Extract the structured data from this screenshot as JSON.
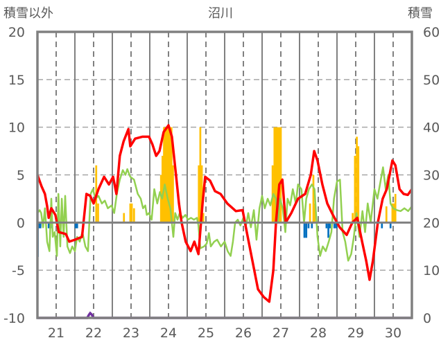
{
  "chart_data": {
    "type": "line",
    "title": "沼川",
    "ylabel_left": "積雪以外",
    "ylabel_right": "積雪",
    "xlim": [
      21,
      31
    ],
    "ylim_left": [
      -10,
      20
    ],
    "ylim_right": [
      0,
      60
    ],
    "yticks_left": [
      "20",
      "15",
      "10",
      "5",
      "0",
      "-5",
      "-10"
    ],
    "yticks_right": [
      "60",
      "50",
      "40",
      "30",
      "20",
      "10",
      "0"
    ],
    "xticks": [
      "21",
      "22",
      "23",
      "24",
      "25",
      "26",
      "27",
      "28",
      "29",
      "30"
    ],
    "grid": true,
    "colors": {
      "red": "#ff0000",
      "green": "#92d050",
      "orange": "#ffc000",
      "blue": "#0070c0",
      "purple": "#7030a0",
      "frame": "#808080",
      "text": "#595959"
    },
    "red_line": {
      "axis": "left",
      "points": [
        [
          21.0,
          5
        ],
        [
          21.11,
          3.8
        ],
        [
          21.2,
          3
        ],
        [
          21.26,
          1.7
        ],
        [
          21.3,
          0.5
        ],
        [
          21.37,
          1.5
        ],
        [
          21.48,
          0.8
        ],
        [
          21.57,
          -1
        ],
        [
          21.76,
          -1.2
        ],
        [
          21.85,
          -2
        ],
        [
          22.0,
          -1.8
        ],
        [
          22.19,
          -1.5
        ],
        [
          22.31,
          3
        ],
        [
          22.41,
          2.8
        ],
        [
          22.5,
          2
        ],
        [
          22.63,
          3.5
        ],
        [
          22.78,
          4.8
        ],
        [
          22.91,
          4
        ],
        [
          23.02,
          4.8
        ],
        [
          23.11,
          3
        ],
        [
          23.2,
          7
        ],
        [
          23.3,
          8.5
        ],
        [
          23.43,
          9.8
        ],
        [
          23.48,
          8
        ],
        [
          23.61,
          8.8
        ],
        [
          23.8,
          9
        ],
        [
          23.98,
          9
        ],
        [
          24.07,
          8.2
        ],
        [
          24.17,
          7
        ],
        [
          24.26,
          7.5
        ],
        [
          24.37,
          9.5
        ],
        [
          24.5,
          10.2
        ],
        [
          24.59,
          9
        ],
        [
          24.7,
          5
        ],
        [
          24.78,
          2
        ],
        [
          24.85,
          0
        ],
        [
          24.96,
          -2
        ],
        [
          25.09,
          -3
        ],
        [
          25.19,
          -2
        ],
        [
          25.3,
          -3.3
        ],
        [
          25.41,
          2
        ],
        [
          25.48,
          4.8
        ],
        [
          25.61,
          4.4
        ],
        [
          25.74,
          3.3
        ],
        [
          25.89,
          3
        ],
        [
          26.07,
          2
        ],
        [
          26.3,
          1.2
        ],
        [
          26.48,
          1.3
        ],
        [
          26.59,
          -1
        ],
        [
          26.74,
          -4
        ],
        [
          26.89,
          -7
        ],
        [
          27.04,
          -7.8
        ],
        [
          27.19,
          -8.3
        ],
        [
          27.3,
          -5
        ],
        [
          27.37,
          0
        ],
        [
          27.46,
          4
        ],
        [
          27.54,
          4.5
        ],
        [
          27.63,
          0
        ],
        [
          27.78,
          1
        ],
        [
          27.96,
          2.5
        ],
        [
          28.15,
          3
        ],
        [
          28.3,
          5
        ],
        [
          28.39,
          7.5
        ],
        [
          28.48,
          6.5
        ],
        [
          28.61,
          4
        ],
        [
          28.74,
          2
        ],
        [
          28.89,
          0.8
        ],
        [
          29.07,
          -0.5
        ],
        [
          29.26,
          -1.3
        ],
        [
          29.41,
          0
        ],
        [
          29.54,
          0.5
        ],
        [
          29.67,
          -2
        ],
        [
          29.78,
          -4
        ],
        [
          29.87,
          -6
        ],
        [
          29.96,
          -4
        ],
        [
          30.09,
          0
        ],
        [
          30.22,
          2.5
        ],
        [
          30.33,
          3.5
        ],
        [
          30.48,
          6.5
        ],
        [
          30.56,
          6
        ],
        [
          30.67,
          3.5
        ],
        [
          30.78,
          3
        ],
        [
          30.89,
          2.9
        ],
        [
          31.0,
          3.5
        ]
      ]
    },
    "green_line": {
      "axis": "left",
      "points": [
        [
          21.0,
          1
        ],
        [
          21.06,
          1.3
        ],
        [
          21.1,
          1
        ],
        [
          21.15,
          -0.5
        ],
        [
          21.2,
          1.5
        ],
        [
          21.26,
          -2
        ],
        [
          21.32,
          -3
        ],
        [
          21.37,
          2.5
        ],
        [
          21.41,
          -1.5
        ],
        [
          21.46,
          -1
        ],
        [
          21.52,
          -3.5
        ],
        [
          21.56,
          3
        ],
        [
          21.61,
          -2.5
        ],
        [
          21.65,
          2.5
        ],
        [
          21.7,
          -1.5
        ],
        [
          21.74,
          2.8
        ],
        [
          21.8,
          -2.5
        ],
        [
          21.87,
          -3.2
        ],
        [
          21.93,
          -2.5
        ],
        [
          22.0,
          -3
        ],
        [
          22.06,
          -1.5
        ],
        [
          22.13,
          -2
        ],
        [
          22.2,
          -1
        ],
        [
          22.28,
          -2.5
        ],
        [
          22.35,
          -3
        ],
        [
          22.42,
          3
        ],
        [
          22.48,
          3.5
        ],
        [
          22.55,
          2.5
        ],
        [
          22.63,
          2.8
        ],
        [
          22.72,
          2
        ],
        [
          22.8,
          2.3
        ],
        [
          22.88,
          1.5
        ],
        [
          22.98,
          1.8
        ],
        [
          23.05,
          1
        ],
        [
          23.12,
          3
        ],
        [
          23.2,
          4.5
        ],
        [
          23.28,
          5.5
        ],
        [
          23.35,
          5
        ],
        [
          23.4,
          5.6
        ],
        [
          23.48,
          4.8
        ],
        [
          23.58,
          4.5
        ],
        [
          23.68,
          3
        ],
        [
          23.76,
          2.5
        ],
        [
          23.82,
          1.5
        ],
        [
          23.88,
          1.8
        ],
        [
          23.92,
          0.8
        ],
        [
          23.98,
          1
        ],
        [
          24.05,
          0.3
        ],
        [
          24.12,
          3.5
        ],
        [
          24.2,
          2
        ],
        [
          24.27,
          3.2
        ],
        [
          24.33,
          2.5
        ],
        [
          24.4,
          4
        ],
        [
          24.48,
          2.5
        ],
        [
          24.55,
          1.5
        ],
        [
          24.63,
          -1.5
        ],
        [
          24.68,
          1
        ],
        [
          24.74,
          0.3
        ],
        [
          24.8,
          1
        ],
        [
          24.88,
          0.5
        ],
        [
          24.95,
          0.8
        ],
        [
          25.02,
          0.3
        ],
        [
          25.1,
          0.5
        ],
        [
          25.18,
          0.3
        ],
        [
          25.26,
          0.5
        ],
        [
          25.3,
          -0.3
        ],
        [
          25.35,
          -2.7
        ],
        [
          25.45,
          -2.5
        ],
        [
          25.52,
          -2.2
        ],
        [
          25.58,
          -1.1
        ],
        [
          25.63,
          -2.5
        ],
        [
          25.72,
          -2
        ],
        [
          25.8,
          -1.8
        ],
        [
          25.9,
          -2.5
        ],
        [
          26.0,
          -2
        ],
        [
          26.08,
          -3
        ],
        [
          26.16,
          -3.5
        ],
        [
          26.22,
          -2
        ],
        [
          26.28,
          0
        ],
        [
          26.35,
          0.3
        ],
        [
          26.42,
          -0.3
        ],
        [
          26.5,
          0.5
        ],
        [
          26.57,
          -0.3
        ],
        [
          26.63,
          1
        ],
        [
          26.7,
          -0.5
        ],
        [
          26.78,
          1.3
        ],
        [
          26.85,
          -1.8
        ],
        [
          26.93,
          1.5
        ],
        [
          27.0,
          2.8
        ],
        [
          27.07,
          1.5
        ],
        [
          27.15,
          2.5
        ],
        [
          27.22,
          1.8
        ],
        [
          27.3,
          3
        ],
        [
          27.37,
          2.5
        ],
        [
          27.42,
          0
        ],
        [
          27.48,
          2.5
        ],
        [
          27.55,
          1.5
        ],
        [
          27.62,
          -1
        ],
        [
          27.68,
          2.5
        ],
        [
          27.75,
          1.8
        ],
        [
          27.82,
          3.5
        ],
        [
          27.9,
          2
        ],
        [
          27.96,
          4
        ],
        [
          28.05,
          3.5
        ],
        [
          28.12,
          0
        ],
        [
          28.18,
          2.5
        ],
        [
          28.25,
          3.5
        ],
        [
          28.33,
          4
        ],
        [
          28.4,
          3.5
        ],
        [
          28.48,
          -1.5
        ],
        [
          28.55,
          -3.5
        ],
        [
          28.62,
          -2.5
        ],
        [
          28.7,
          -3
        ],
        [
          28.78,
          -2
        ],
        [
          28.85,
          -1
        ],
        [
          28.92,
          2.5
        ],
        [
          29.0,
          4.3
        ],
        [
          29.08,
          4.5
        ],
        [
          29.15,
          -1
        ],
        [
          29.22,
          -2
        ],
        [
          29.3,
          -4
        ],
        [
          29.38,
          -3.3
        ],
        [
          29.45,
          -1.5
        ],
        [
          29.52,
          1
        ],
        [
          29.6,
          -1.5
        ],
        [
          29.68,
          1.2
        ],
        [
          29.75,
          -1
        ],
        [
          29.82,
          2
        ],
        [
          29.9,
          0
        ],
        [
          30.0,
          3.5
        ],
        [
          30.08,
          2.5
        ],
        [
          30.17,
          4.5
        ],
        [
          30.23,
          5.8
        ],
        [
          30.3,
          3.5
        ],
        [
          30.37,
          5
        ],
        [
          30.43,
          2
        ],
        [
          30.5,
          1.5
        ],
        [
          30.6,
          1.3
        ],
        [
          30.7,
          1.2
        ],
        [
          30.8,
          1.5
        ],
        [
          30.9,
          1.2
        ],
        [
          31.0,
          1.7
        ]
      ]
    },
    "orange_bars": {
      "axis": "left",
      "points": [
        [
          21.56,
          2.8
        ],
        [
          22.57,
          6
        ],
        [
          22.62,
          2
        ],
        [
          23.31,
          1
        ],
        [
          23.48,
          2
        ],
        [
          23.52,
          2
        ],
        [
          23.58,
          1.5
        ],
        [
          24.3,
          5
        ],
        [
          24.34,
          7
        ],
        [
          24.38,
          10
        ],
        [
          24.42,
          10
        ],
        [
          24.46,
          10
        ],
        [
          24.5,
          10
        ],
        [
          24.54,
          10
        ],
        [
          24.58,
          10
        ],
        [
          24.62,
          6
        ],
        [
          25.31,
          6
        ],
        [
          25.35,
          10
        ],
        [
          25.39,
          6
        ],
        [
          25.43,
          1
        ],
        [
          27.28,
          6
        ],
        [
          27.33,
          10
        ],
        [
          27.37,
          10
        ],
        [
          27.41,
          10
        ],
        [
          27.46,
          10
        ],
        [
          27.5,
          10
        ],
        [
          28.28,
          2
        ],
        [
          28.37,
          5
        ],
        [
          28.4,
          2
        ],
        [
          29.42,
          1
        ],
        [
          29.48,
          7
        ],
        [
          29.53,
          9
        ],
        [
          29.57,
          8
        ],
        [
          30.32,
          1.7
        ],
        [
          30.48,
          2
        ],
        [
          30.52,
          2
        ],
        [
          30.56,
          3
        ]
      ]
    },
    "blue_bars": {
      "axis": "left",
      "points": [
        [
          21.01,
          -3.6
        ],
        [
          21.04,
          -0.6
        ],
        [
          21.08,
          -0.6
        ],
        [
          21.3,
          -0.6
        ],
        [
          21.35,
          -0.6
        ],
        [
          22.02,
          -0.6
        ],
        [
          22.06,
          -0.6
        ],
        [
          28.13,
          -1.6
        ],
        [
          28.18,
          -1.6
        ],
        [
          28.24,
          -0.6
        ],
        [
          28.33,
          -0.6
        ],
        [
          28.72,
          -0.6
        ],
        [
          28.77,
          -1.6
        ],
        [
          28.81,
          -0.6
        ],
        [
          28.93,
          -0.6
        ],
        [
          28.98,
          -0.6
        ],
        [
          30.2,
          -0.6
        ],
        [
          30.43,
          -0.6
        ]
      ]
    },
    "purple_line": {
      "axis": "right",
      "points": [
        [
          21.0,
          0
        ],
        [
          22.33,
          0
        ],
        [
          22.38,
          0.7
        ],
        [
          22.41,
          1
        ],
        [
          22.45,
          0.7
        ],
        [
          22.5,
          0
        ],
        [
          31.0,
          0
        ]
      ]
    }
  }
}
